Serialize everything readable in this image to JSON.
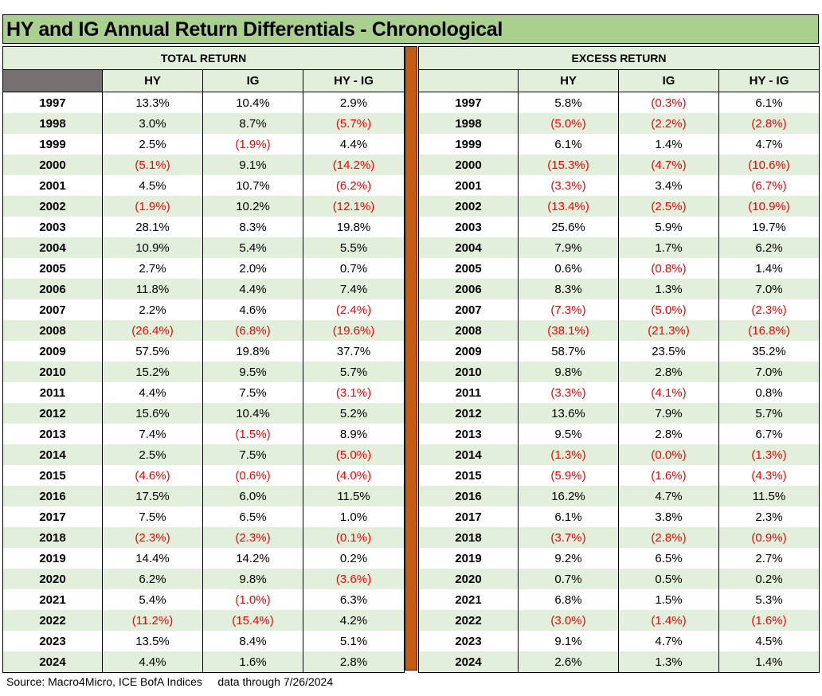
{
  "title": "HY and IG Annual Return Differentials - Chronological",
  "colors": {
    "title_bg": "#a9d08e",
    "band_bg": "#e2efda",
    "divider": "#c55a11",
    "negative": "#ff0000",
    "corner": "#767171"
  },
  "total_return": {
    "section_label": "TOTAL RETURN",
    "headers": [
      "HY",
      "IG",
      "HY - IG"
    ],
    "rows": [
      {
        "year": "1997",
        "hy": "13.3%",
        "ig": "10.4%",
        "diff": "2.9%"
      },
      {
        "year": "1998",
        "hy": "3.0%",
        "ig": "8.7%",
        "diff": "(5.7%)"
      },
      {
        "year": "1999",
        "hy": "2.5%",
        "ig": "(1.9%)",
        "diff": "4.4%"
      },
      {
        "year": "2000",
        "hy": "(5.1%)",
        "ig": "9.1%",
        "diff": "(14.2%)"
      },
      {
        "year": "2001",
        "hy": "4.5%",
        "ig": "10.7%",
        "diff": "(6.2%)"
      },
      {
        "year": "2002",
        "hy": "(1.9%)",
        "ig": "10.2%",
        "diff": "(12.1%)"
      },
      {
        "year": "2003",
        "hy": "28.1%",
        "ig": "8.3%",
        "diff": "19.8%"
      },
      {
        "year": "2004",
        "hy": "10.9%",
        "ig": "5.4%",
        "diff": "5.5%"
      },
      {
        "year": "2005",
        "hy": "2.7%",
        "ig": "2.0%",
        "diff": "0.7%"
      },
      {
        "year": "2006",
        "hy": "11.8%",
        "ig": "4.4%",
        "diff": "7.4%"
      },
      {
        "year": "2007",
        "hy": "2.2%",
        "ig": "4.6%",
        "diff": "(2.4%)"
      },
      {
        "year": "2008",
        "hy": "(26.4%)",
        "ig": "(6.8%)",
        "diff": "(19.6%)"
      },
      {
        "year": "2009",
        "hy": "57.5%",
        "ig": "19.8%",
        "diff": "37.7%"
      },
      {
        "year": "2010",
        "hy": "15.2%",
        "ig": "9.5%",
        "diff": "5.7%"
      },
      {
        "year": "2011",
        "hy": "4.4%",
        "ig": "7.5%",
        "diff": "(3.1%)"
      },
      {
        "year": "2012",
        "hy": "15.6%",
        "ig": "10.4%",
        "diff": "5.2%"
      },
      {
        "year": "2013",
        "hy": "7.4%",
        "ig": "(1.5%)",
        "diff": "8.9%"
      },
      {
        "year": "2014",
        "hy": "2.5%",
        "ig": "7.5%",
        "diff": "(5.0%)"
      },
      {
        "year": "2015",
        "hy": "(4.6%)",
        "ig": "(0.6%)",
        "diff": "(4.0%)"
      },
      {
        "year": "2016",
        "hy": "17.5%",
        "ig": "6.0%",
        "diff": "11.5%"
      },
      {
        "year": "2017",
        "hy": "7.5%",
        "ig": "6.5%",
        "diff": "1.0%"
      },
      {
        "year": "2018",
        "hy": "(2.3%)",
        "ig": "(2.3%)",
        "diff": "(0.1%)"
      },
      {
        "year": "2019",
        "hy": "14.4%",
        "ig": "14.2%",
        "diff": "0.2%"
      },
      {
        "year": "2020",
        "hy": "6.2%",
        "ig": "9.8%",
        "diff": "(3.6%)"
      },
      {
        "year": "2021",
        "hy": "5.4%",
        "ig": "(1.0%)",
        "diff": "6.3%"
      },
      {
        "year": "2022",
        "hy": "(11.2%)",
        "ig": "(15.4%)",
        "diff": "4.2%"
      },
      {
        "year": "2023",
        "hy": "13.5%",
        "ig": "8.4%",
        "diff": "5.1%"
      },
      {
        "year": "2024",
        "hy": "4.4%",
        "ig": "1.6%",
        "diff": "2.8%"
      }
    ]
  },
  "excess_return": {
    "section_label": "EXCESS RETURN",
    "headers": [
      "HY",
      "IG",
      "HY - IG"
    ],
    "rows": [
      {
        "year": "1997",
        "hy": "5.8%",
        "ig": "(0.3%)",
        "diff": "6.1%"
      },
      {
        "year": "1998",
        "hy": "(5.0%)",
        "ig": "(2.2%)",
        "diff": "(2.8%)"
      },
      {
        "year": "1999",
        "hy": "6.1%",
        "ig": "1.4%",
        "diff": "4.7%"
      },
      {
        "year": "2000",
        "hy": "(15.3%)",
        "ig": "(4.7%)",
        "diff": "(10.6%)"
      },
      {
        "year": "2001",
        "hy": "(3.3%)",
        "ig": "3.4%",
        "diff": "(6.7%)"
      },
      {
        "year": "2002",
        "hy": "(13.4%)",
        "ig": "(2.5%)",
        "diff": "(10.9%)"
      },
      {
        "year": "2003",
        "hy": "25.6%",
        "ig": "5.9%",
        "diff": "19.7%"
      },
      {
        "year": "2004",
        "hy": "7.9%",
        "ig": "1.7%",
        "diff": "6.2%"
      },
      {
        "year": "2005",
        "hy": "0.6%",
        "ig": "(0.8%)",
        "diff": "1.4%"
      },
      {
        "year": "2006",
        "hy": "8.3%",
        "ig": "1.3%",
        "diff": "7.0%"
      },
      {
        "year": "2007",
        "hy": "(7.3%)",
        "ig": "(5.0%)",
        "diff": "(2.3%)"
      },
      {
        "year": "2008",
        "hy": "(38.1%)",
        "ig": "(21.3%)",
        "diff": "(16.8%)"
      },
      {
        "year": "2009",
        "hy": "58.7%",
        "ig": "23.5%",
        "diff": "35.2%"
      },
      {
        "year": "2010",
        "hy": "9.8%",
        "ig": "2.8%",
        "diff": "7.0%"
      },
      {
        "year": "2011",
        "hy": "(3.3%)",
        "ig": "(4.1%)",
        "diff": "0.8%"
      },
      {
        "year": "2012",
        "hy": "13.6%",
        "ig": "7.9%",
        "diff": "5.7%"
      },
      {
        "year": "2013",
        "hy": "9.5%",
        "ig": "2.8%",
        "diff": "6.7%"
      },
      {
        "year": "2014",
        "hy": "(1.3%)",
        "ig": "(0.0%)",
        "diff": "(1.3%)"
      },
      {
        "year": "2015",
        "hy": "(5.9%)",
        "ig": "(1.6%)",
        "diff": "(4.3%)"
      },
      {
        "year": "2016",
        "hy": "16.2%",
        "ig": "4.7%",
        "diff": "11.5%"
      },
      {
        "year": "2017",
        "hy": "6.1%",
        "ig": "3.8%",
        "diff": "2.3%"
      },
      {
        "year": "2018",
        "hy": "(3.7%)",
        "ig": "(2.8%)",
        "diff": "(0.9%)"
      },
      {
        "year": "2019",
        "hy": "9.2%",
        "ig": "6.5%",
        "diff": "2.7%"
      },
      {
        "year": "2020",
        "hy": "0.7%",
        "ig": "0.5%",
        "diff": "0.2%"
      },
      {
        "year": "2021",
        "hy": "6.8%",
        "ig": "1.5%",
        "diff": "5.3%"
      },
      {
        "year": "2022",
        "hy": "(3.0%)",
        "ig": "(1.4%)",
        "diff": "(1.6%)"
      },
      {
        "year": "2023",
        "hy": "9.1%",
        "ig": "4.7%",
        "diff": "4.5%"
      },
      {
        "year": "2024",
        "hy": "2.6%",
        "ig": "1.3%",
        "diff": "1.4%"
      }
    ]
  },
  "footer": {
    "source": "Source: Macro4Micro, ICE BofA Indices",
    "data_through": "data through 7/26/2024"
  }
}
